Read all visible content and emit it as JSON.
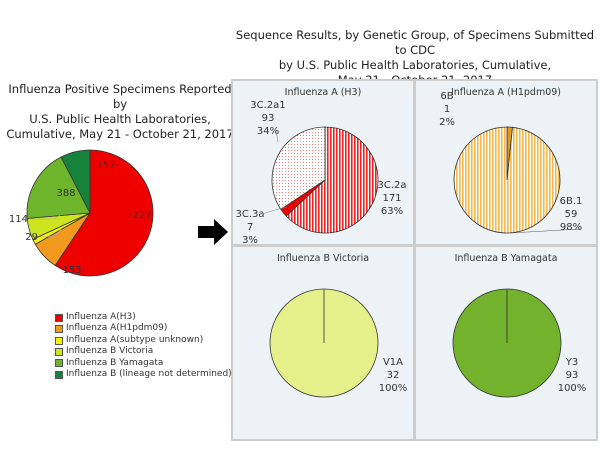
{
  "left_title": [
    "Influenza Positive Specimens Reported by",
    "U.S. Public Health Laboratories,",
    "Cumulative, May 21 - October 21, 2017"
  ],
  "right_title": [
    "Sequence Results, by Genetic Group, of Specimens Submitted to CDC",
    "by U.S. Public Health Laboratories, Cumulative,",
    "May 21 - October 21, 2017"
  ],
  "chart_data": [
    {
      "type": "pie",
      "labels": [
        "Influenza A(H3)",
        "Influenza A(H1pdm09)",
        "Influenza A(subtype unknown)",
        "Influenza B Victoria",
        "Influenza B Yamagata",
        "Influenza B (lineage not determined)"
      ],
      "values": [
        1227,
        153,
        29,
        114,
        388,
        157
      ],
      "colors": [
        "#ee0000",
        "#f19a1e",
        "#f6f500",
        "#cde51e",
        "#6fb52c",
        "#17823c"
      ],
      "legend": "bottom"
    },
    {
      "type": "pie",
      "title": "Influenza A (H3)",
      "labels": [
        "3C.2a",
        "3C.3a",
        "3C.2a1"
      ],
      "values": [
        171,
        7,
        93
      ],
      "percents": [
        "63%",
        "3%",
        "34%"
      ],
      "colors": [
        "#ee2222",
        "#ee0000",
        "#f6c6c6"
      ]
    },
    {
      "type": "pie",
      "title": "Influenza A (H1pdm09)",
      "labels": [
        "6B",
        "6B.1"
      ],
      "values": [
        1,
        59
      ],
      "percents": [
        "2%",
        "98%"
      ],
      "colors": [
        "#e59a16",
        "#f8cc7a"
      ]
    },
    {
      "type": "pie",
      "title": "Influenza B Victoria",
      "labels": [
        "V1A"
      ],
      "values": [
        32
      ],
      "percents": [
        "100%"
      ],
      "colors": [
        "#e6f08a"
      ]
    },
    {
      "type": "pie",
      "title": "Influenza B Yamagata",
      "labels": [
        "Y3"
      ],
      "values": [
        93
      ],
      "percents": [
        "100%"
      ],
      "colors": [
        "#72b22c"
      ]
    }
  ]
}
